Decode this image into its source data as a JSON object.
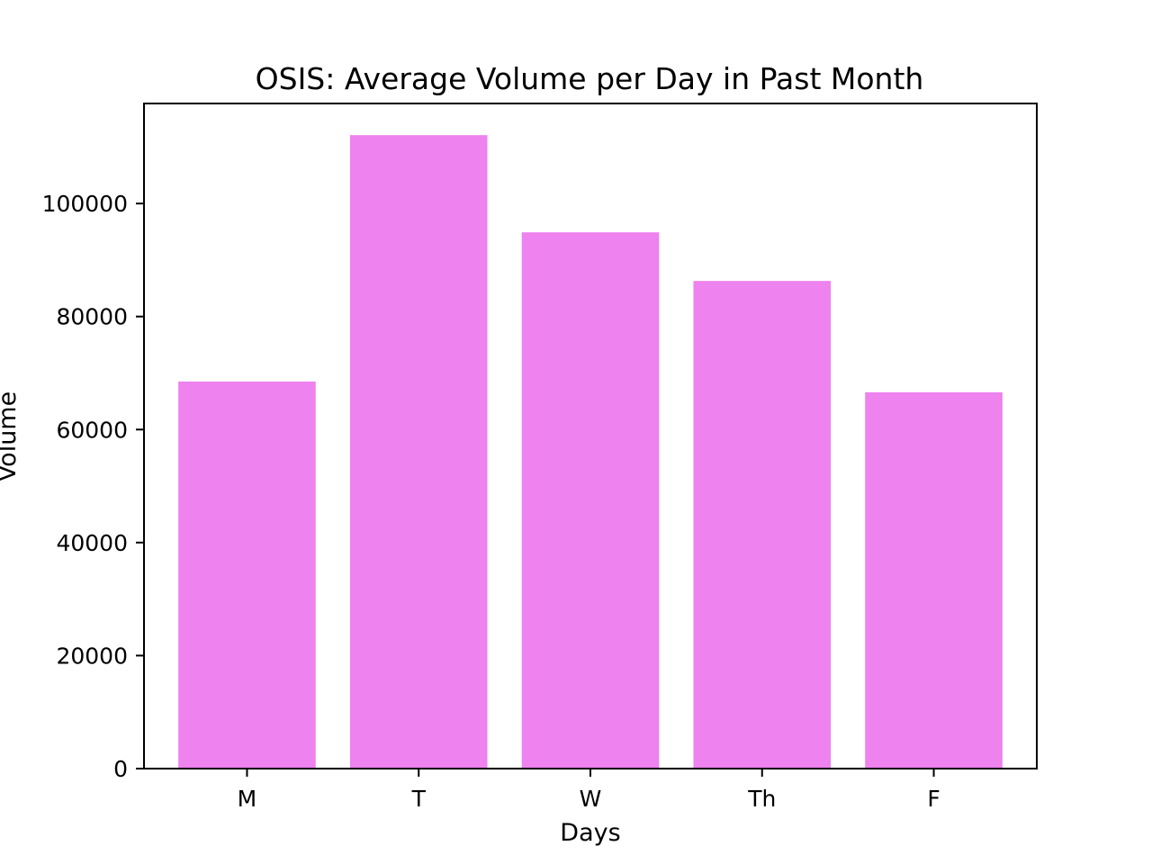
{
  "chart_data": {
    "type": "bar",
    "title": "OSIS: Average Volume per Day in Past Month",
    "xlabel": "Days",
    "ylabel": "Volume",
    "categories": [
      "M",
      "T",
      "W",
      "Th",
      "F"
    ],
    "values": [
      68500,
      112100,
      94900,
      86300,
      66600
    ],
    "ylim": [
      0,
      117700
    ],
    "yticks": [
      0,
      20000,
      40000,
      60000,
      80000,
      100000
    ],
    "ytick_labels": [
      "0",
      "20000",
      "40000",
      "60000",
      "80000",
      "100000"
    ],
    "grid": false,
    "legend": "none",
    "colors": {
      "bar": "#ee82ee",
      "axes": "#000000",
      "background": "#ffffff"
    }
  }
}
